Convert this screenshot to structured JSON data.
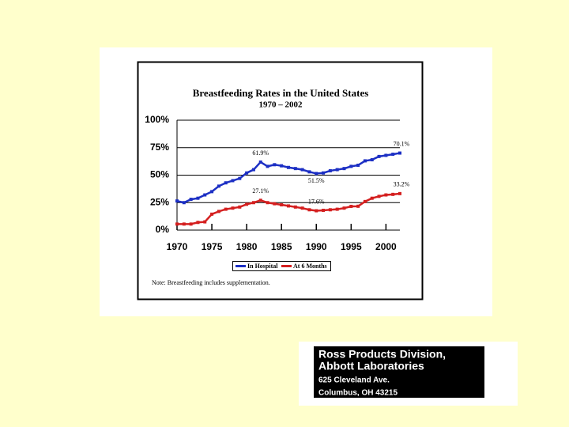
{
  "chart_data": {
    "type": "line",
    "title": "Breastfeeding Rates in the United States",
    "subtitle": "1970 – 2002",
    "x": [
      1970,
      1971,
      1972,
      1973,
      1974,
      1975,
      1976,
      1977,
      1978,
      1979,
      1980,
      1981,
      1982,
      1983,
      1984,
      1985,
      1986,
      1987,
      1988,
      1989,
      1990,
      1991,
      1992,
      1993,
      1994,
      1995,
      1996,
      1997,
      1998,
      1999,
      2000,
      2001,
      2002
    ],
    "series": [
      {
        "name": "In Hospital",
        "color": "#1c2fc4",
        "values": [
          26.5,
          25,
          28,
          29,
          32,
          35,
          40,
          43,
          45,
          47,
          52,
          55,
          61.9,
          58,
          59.5,
          58.5,
          57,
          56,
          55,
          53,
          51.5,
          52,
          54,
          55,
          56,
          58,
          59,
          63,
          64,
          67,
          68,
          69,
          70.1
        ],
        "value_labels": [
          null,
          null,
          null,
          null,
          null,
          null,
          null,
          null,
          null,
          null,
          null,
          null,
          "61.9%",
          null,
          null,
          null,
          null,
          null,
          null,
          null,
          "51.5%",
          null,
          null,
          null,
          null,
          null,
          null,
          null,
          null,
          null,
          null,
          null,
          "70.1%"
        ]
      },
      {
        "name": "At 6 Months",
        "color": "#d41f1f",
        "values": [
          5.5,
          5.5,
          5.5,
          7,
          7.5,
          14.5,
          17,
          19,
          20,
          21,
          23.5,
          25,
          27.1,
          25,
          24,
          23,
          22,
          21,
          20,
          18.5,
          17.6,
          18,
          18.5,
          19,
          20,
          21.6,
          21.7,
          26,
          29,
          30.7,
          32,
          32.5,
          33.2
        ],
        "value_labels": [
          null,
          null,
          null,
          null,
          null,
          null,
          null,
          null,
          null,
          null,
          null,
          null,
          "27.1%",
          null,
          null,
          null,
          null,
          null,
          null,
          null,
          "17.6%",
          null,
          null,
          null,
          null,
          null,
          null,
          null,
          null,
          null,
          null,
          null,
          "33.2%"
        ]
      }
    ],
    "xlim": [
      1970,
      2002
    ],
    "xticks": [
      1970,
      1975,
      1980,
      1985,
      1990,
      1995,
      2000
    ],
    "ylim": [
      0,
      100
    ],
    "yticks": [
      {
        "value": 0,
        "label": "0%"
      },
      {
        "value": 25,
        "label": "25%"
      },
      {
        "value": 50,
        "label": "50%"
      },
      {
        "value": 75,
        "label": "75%"
      },
      {
        "value": 100,
        "label": "100%"
      }
    ],
    "grid": true,
    "legend": "bottom",
    "note": "Note:  Breastfeeding includes supplementation."
  },
  "address": {
    "lines": [
      "Ross Products Division,",
      "Abbott Laboratories",
      "625 Cleveland Ave.",
      "Columbus, OH 43215"
    ]
  }
}
